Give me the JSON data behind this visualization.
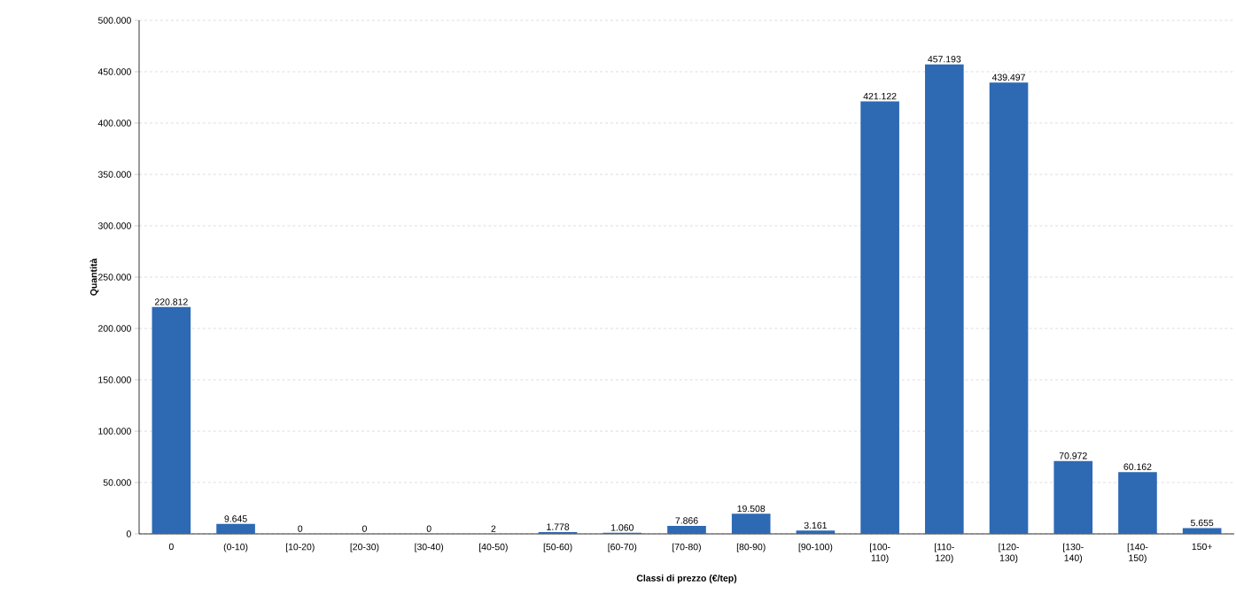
{
  "chart_data": {
    "type": "bar",
    "xlabel": "Classi di prezzo (€/tep)",
    "ylabel": "Quantità",
    "categories": [
      "0",
      "(0-10)",
      "[10-20)",
      "[20-30)",
      "[30-40)",
      "[40-50)",
      "[50-60)",
      "[60-70)",
      "[70-80)",
      "[80-90)",
      "[90-100)",
      "[100-110)",
      "[110-120)",
      "[120-130)",
      "[130-140)",
      "[140-150)",
      "150+"
    ],
    "values": [
      220812,
      9645,
      0,
      0,
      0,
      2,
      1778,
      1060,
      7866,
      19508,
      3161,
      421122,
      457193,
      439497,
      70972,
      60162,
      5655
    ],
    "value_labels": [
      "220.812",
      "9.645",
      "0",
      "0",
      "0",
      "2",
      "1.778",
      "1.060",
      "7.866",
      "19.508",
      "3.161",
      "421.122",
      "457.193",
      "439.497",
      "70.972",
      "60.162",
      "5.655"
    ],
    "color": "#2e69b3",
    "ylim": [
      0,
      500000
    ],
    "yticks": [
      0,
      {
        "value": 50000,
        "label": "50.000"
      },
      {
        "value": 100000,
        "label": "100.000"
      },
      {
        "value": 150000,
        "label": "150.000"
      },
      {
        "value": 200000,
        "label": "200.000"
      },
      {
        "value": 250000,
        "label": "250.000"
      },
      {
        "value": 300000,
        "label": "300.000"
      },
      {
        "value": 350000,
        "label": "350.000"
      },
      {
        "value": 400000,
        "label": "400.000"
      },
      {
        "value": 450000,
        "label": "450.000"
      },
      {
        "value": 500000,
        "label": "500.000"
      }
    ],
    "grid": "y"
  }
}
